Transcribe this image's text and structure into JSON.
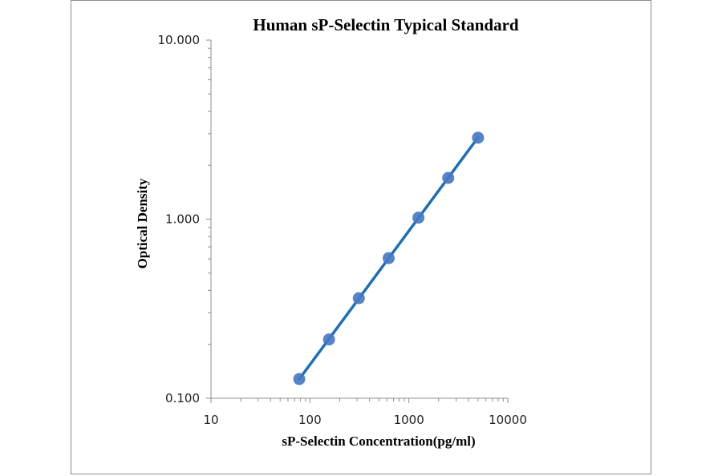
{
  "chart_data": {
    "type": "scatter",
    "title": "Human sP-Selectin Typical Standard",
    "xlabel": "sP-Selectin Concentration(pg/ml)",
    "ylabel": "Optical Density",
    "x_scale": "log",
    "y_scale": "log",
    "xlim": [
      10,
      10000
    ],
    "ylim": [
      0.1,
      10
    ],
    "x_ticks": [
      "10",
      "100",
      "1000",
      "10000"
    ],
    "y_ticks": [
      "0.100",
      "1.000",
      "10.000"
    ],
    "grid": false,
    "legend": "none",
    "series": [
      {
        "x": [
          78,
          156,
          312,
          625,
          1250,
          2500,
          5000
        ],
        "y": [
          0.128,
          0.213,
          0.362,
          0.606,
          1.02,
          1.7,
          2.85
        ],
        "marker_color": "#4a78c2",
        "line_color": "#1f6fb2",
        "trendline": true
      }
    ]
  }
}
